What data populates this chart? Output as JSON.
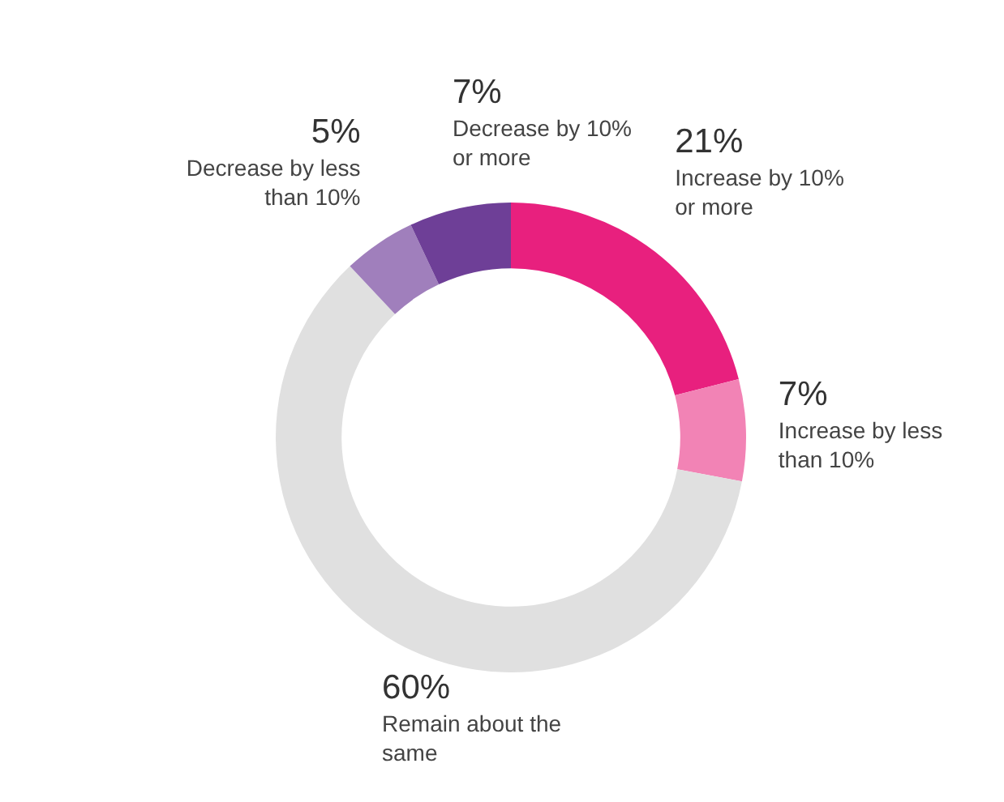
{
  "chart_data": {
    "type": "donut",
    "categories": [
      "Increase by 10% or more",
      "Increase by less than 10%",
      "Remain about the same",
      "Decrease by less than 10%",
      "Decrease by 10% or more"
    ],
    "values": [
      21,
      7,
      60,
      5,
      7
    ],
    "colors": [
      "#e8207e",
      "#f283b5",
      "#e0e0e0",
      "#a07fbc",
      "#6e3f97"
    ],
    "value_labels": [
      "21%",
      "7%",
      "60%",
      "5%",
      "7%"
    ]
  }
}
